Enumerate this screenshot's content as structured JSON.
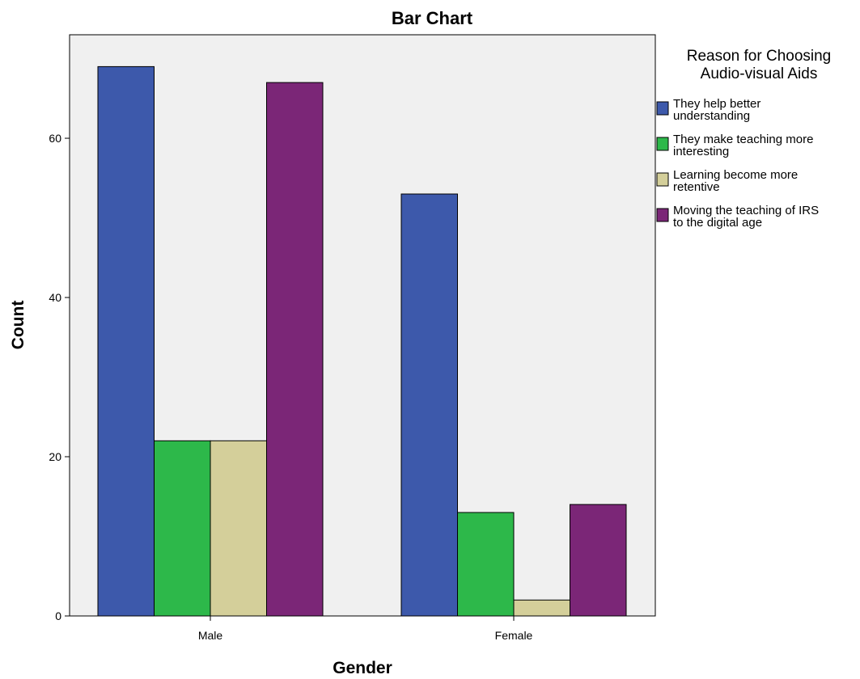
{
  "chart_data": {
    "type": "bar",
    "title": "Bar Chart",
    "xlabel": "Gender",
    "ylabel": "Count",
    "categories": [
      "Male",
      "Female"
    ],
    "ylim": [
      0,
      73
    ],
    "yticks": [
      0,
      20,
      40,
      60
    ],
    "grid": false,
    "legend": {
      "title_lines": [
        "Reason for Choosing",
        "Audio-visual Aids"
      ],
      "placement": "right"
    },
    "series": [
      {
        "name": "They help better understanding",
        "legend_lines": [
          "They help better",
          "understanding"
        ],
        "color": "#3d59ab",
        "values": [
          69,
          53
        ]
      },
      {
        "name": "They make teaching more interesting",
        "legend_lines": [
          "They make teaching more",
          "interesting"
        ],
        "color": "#2db84a",
        "values": [
          22,
          13
        ]
      },
      {
        "name": "Learning become more retentive",
        "legend_lines": [
          "Learning become more",
          "retentive"
        ],
        "color": "#d4cf9a",
        "values": [
          22,
          2
        ]
      },
      {
        "name": "Moving the teaching of IRS to the digital age",
        "legend_lines": [
          "Moving the teaching of IRS",
          "to the digital age"
        ],
        "color": "#7b2677",
        "values": [
          67,
          14
        ]
      }
    ],
    "plot_background": "#f0f0f0"
  }
}
